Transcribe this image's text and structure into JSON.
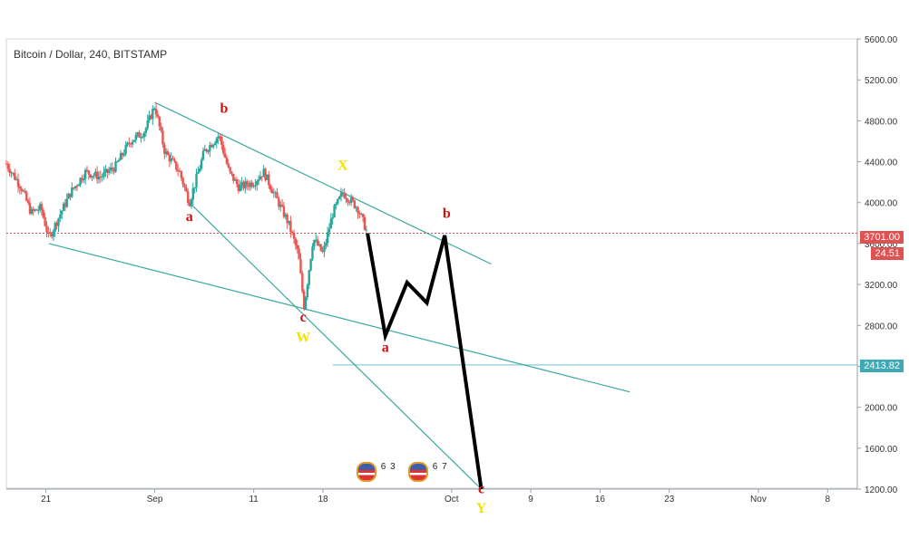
{
  "header": {
    "title": "Bitcoin / Dollar, 240, BITSTAMP"
  },
  "price_tags": {
    "current": "3701.00",
    "countdown": "24.51",
    "level": "2413.82"
  },
  "badges": [
    {
      "a": "6",
      "b": "3"
    },
    {
      "a": "6",
      "b": "7"
    }
  ],
  "colors": {
    "bull": "#26a69a",
    "bear": "#ef5350",
    "trendline": "#3aa8a0",
    "projection": "#000000",
    "label_red": "#d01010",
    "label_yellow": "#f2e200",
    "current_line": "#e05252",
    "level_line": "#6fc3c9"
  },
  "chart_data": {
    "type": "line",
    "title": "Bitcoin / Dollar, 240, BITSTAMP",
    "ylim": [
      1200,
      5600
    ],
    "y_ticks": [
      1200,
      1600,
      2000,
      2400,
      2800,
      3200,
      3600,
      4000,
      4400,
      4800,
      5200,
      5600
    ],
    "y_tick_labels": [
      "1200.00",
      "1600.00",
      "2000.00",
      "2400.00",
      "2800.00",
      "3200.00",
      "3600.00",
      "4000.00",
      "4400.00",
      "4800.00",
      "5200.00",
      "5600.00"
    ],
    "x_ticks": [
      "21",
      "Sep",
      "11",
      "18",
      "Oct",
      "9",
      "16",
      "23",
      "Nov",
      "8"
    ],
    "x_tick_days": [
      21,
      32,
      42,
      49,
      62,
      70,
      77,
      84,
      93,
      100
    ],
    "x_range_days": [
      17,
      103
    ],
    "price_path": [
      {
        "x": 17.0,
        "y": 4380
      },
      {
        "x": 18.5,
        "y": 4150
      },
      {
        "x": 19.5,
        "y": 3900
      },
      {
        "x": 20.5,
        "y": 3950
      },
      {
        "x": 21.3,
        "y": 3650
      },
      {
        "x": 22.5,
        "y": 3900
      },
      {
        "x": 23.5,
        "y": 4100
      },
      {
        "x": 25.0,
        "y": 4300
      },
      {
        "x": 26.5,
        "y": 4250
      },
      {
        "x": 28.0,
        "y": 4350
      },
      {
        "x": 29.5,
        "y": 4600
      },
      {
        "x": 31.0,
        "y": 4700
      },
      {
        "x": 32.0,
        "y": 4950
      },
      {
        "x": 33.0,
        "y": 4500
      },
      {
        "x": 34.5,
        "y": 4300
      },
      {
        "x": 35.5,
        "y": 4000
      },
      {
        "x": 37.0,
        "y": 4500
      },
      {
        "x": 38.5,
        "y": 4660
      },
      {
        "x": 39.5,
        "y": 4300
      },
      {
        "x": 40.5,
        "y": 4150
      },
      {
        "x": 42.0,
        "y": 4200
      },
      {
        "x": 43.0,
        "y": 4300
      },
      {
        "x": 44.0,
        "y": 4100
      },
      {
        "x": 45.5,
        "y": 3800
      },
      {
        "x": 46.5,
        "y": 3500
      },
      {
        "x": 47.1,
        "y": 2980
      },
      {
        "x": 48.0,
        "y": 3650
      },
      {
        "x": 49.0,
        "y": 3500
      },
      {
        "x": 50.0,
        "y": 3900
      },
      {
        "x": 51.0,
        "y": 4100
      },
      {
        "x": 52.5,
        "y": 3950
      },
      {
        "x": 53.5,
        "y": 3700
      }
    ],
    "projection": [
      {
        "x": 53.5,
        "y": 3700
      },
      {
        "x": 55.3,
        "y": 2700
      },
      {
        "x": 57.5,
        "y": 3220
      },
      {
        "x": 59.5,
        "y": 3020
      },
      {
        "x": 61.3,
        "y": 3680
      },
      {
        "x": 65.0,
        "y": 1200
      }
    ],
    "trendlines": [
      {
        "from": {
          "x": 32.0,
          "y": 4980
        },
        "to": {
          "x": 66.0,
          "y": 3400
        }
      },
      {
        "from": {
          "x": 21.3,
          "y": 3600
        },
        "to": {
          "x": 80.0,
          "y": 2150
        }
      },
      {
        "from": {
          "x": 35.5,
          "y": 4000
        },
        "to": {
          "x": 65.0,
          "y": 1200
        }
      }
    ],
    "horizontal_levels": [
      {
        "y": 3701.0,
        "x_from": 17.0,
        "style": "dotted"
      },
      {
        "y": 2413.82,
        "x_from": 50.0,
        "style": "solid"
      }
    ],
    "wave_labels": [
      {
        "text": "b",
        "x": 39.0,
        "y": 4880,
        "color": "red"
      },
      {
        "text": "a",
        "x": 35.5,
        "y": 3820,
        "color": "red"
      },
      {
        "text": "X",
        "x": 51.0,
        "y": 4320,
        "color": "yellow"
      },
      {
        "text": "c",
        "x": 47.0,
        "y": 2840,
        "color": "red"
      },
      {
        "text": "W",
        "x": 47.0,
        "y": 2640,
        "color": "yellow"
      },
      {
        "text": "a",
        "x": 55.3,
        "y": 2540,
        "color": "red"
      },
      {
        "text": "b",
        "x": 61.5,
        "y": 3850,
        "color": "red"
      },
      {
        "text": "c",
        "x": 65.0,
        "y": 1160,
        "color": "red"
      },
      {
        "text": "Y",
        "x": 65.0,
        "y": 970,
        "color": "yellow"
      }
    ]
  }
}
